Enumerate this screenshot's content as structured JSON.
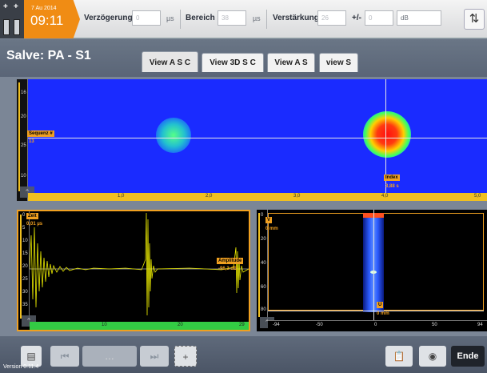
{
  "status": {
    "date": "7 Au 2014",
    "time": "09:11"
  },
  "toolbar": {
    "delay_label": "Verzögerung",
    "delay_value": "0",
    "delay_unit": "µs",
    "range_label": "Bereich",
    "range_value": "38",
    "range_unit": "µs",
    "gain_label": "Verstärkung",
    "gain_value": "26",
    "gain_pm_label": "+/-",
    "gain_pm_value": "0",
    "gain_unit": "dB",
    "swap_icon": "swap-vertical-icon"
  },
  "header": {
    "title": "Salve: PA - S1"
  },
  "tabs": [
    {
      "label": "View A S C",
      "active": true
    },
    {
      "label": "View 3D S C",
      "active": false
    },
    {
      "label": "View A S",
      "active": false
    },
    {
      "label": "view S",
      "active": false
    }
  ],
  "cscan": {
    "sequence_label": "Sequenz #",
    "sequence_value": "13",
    "index_label": "Index",
    "index_value": "3,88 s",
    "ticks_v": [
      "16",
      "20",
      "25",
      "10",
      "15",
      "13"
    ],
    "ticks_h": [
      "1,0",
      "2,0",
      "3,0",
      "4,0",
      "5,0"
    ]
  },
  "ascan": {
    "time_label": "Zeit",
    "time_value": "0,01 µs",
    "amp_label": "Amplitude",
    "amp_value": "-96,3 dB",
    "ticks_v": [
      "0",
      "5",
      "10",
      "15",
      "20",
      "25",
      "30",
      "35"
    ],
    "ticks_h": [
      "10",
      "20",
      "29"
    ]
  },
  "sscan": {
    "v_label": "V",
    "v_value": "0 mm",
    "u_label": "U",
    "u_value": "0 mm",
    "ticks_v": [
      "0",
      "20",
      "40",
      "60",
      "80"
    ],
    "ticks_h": [
      "-94",
      "-50",
      "0",
      "50",
      "94"
    ]
  },
  "footer": {
    "end_label": "Ende",
    "version": "Version 0.11.4",
    "center_text": "…"
  },
  "colors": {
    "accent": "#f08c14",
    "cscan_bg": "#1a2bff",
    "ruler_yellow": "#f0c020",
    "ruler_green": "#33cc44",
    "signal": "#e8e800"
  }
}
